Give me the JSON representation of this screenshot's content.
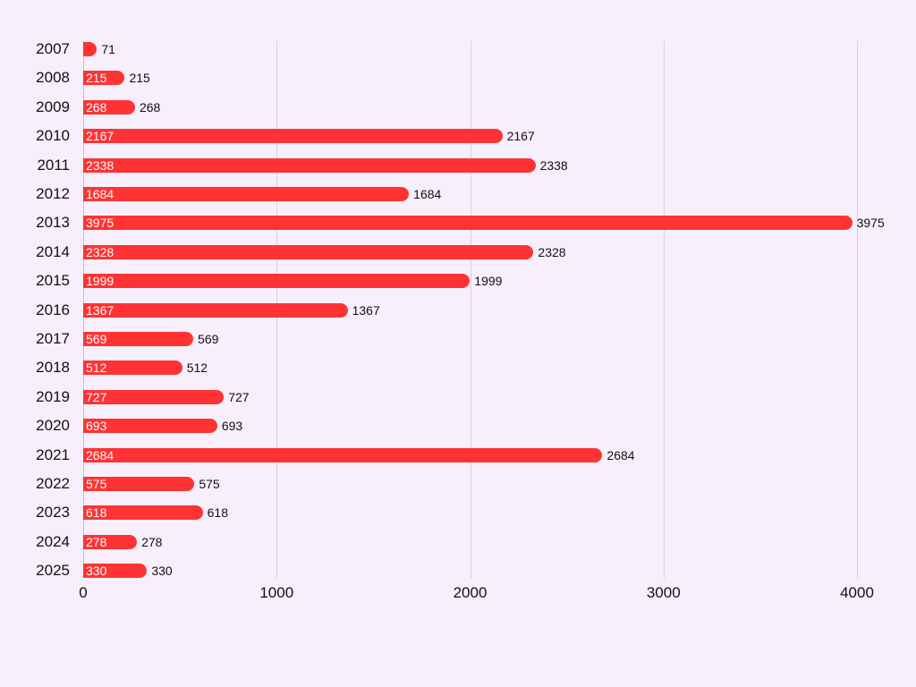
{
  "chart_data": {
    "type": "bar",
    "orientation": "horizontal",
    "title": "",
    "xlabel": "",
    "ylabel": "",
    "xlim": [
      0,
      4000
    ],
    "xticks": [
      "0",
      "1000",
      "2000",
      "3000",
      "4000"
    ],
    "grid": true,
    "categories": [
      "2007",
      "2008",
      "2009",
      "2010",
      "2011",
      "2012",
      "2013",
      "2014",
      "2015",
      "2016",
      "2017",
      "2018",
      "2019",
      "2020",
      "2021",
      "2022",
      "2023",
      "2024",
      "2025"
    ],
    "values": [
      71,
      215,
      268,
      2167,
      2338,
      1684,
      3975,
      2328,
      1999,
      1367,
      569,
      512,
      727,
      693,
      2684,
      575,
      618,
      278,
      330
    ],
    "bar_color": "#ff3333",
    "background": "#f7effc"
  }
}
